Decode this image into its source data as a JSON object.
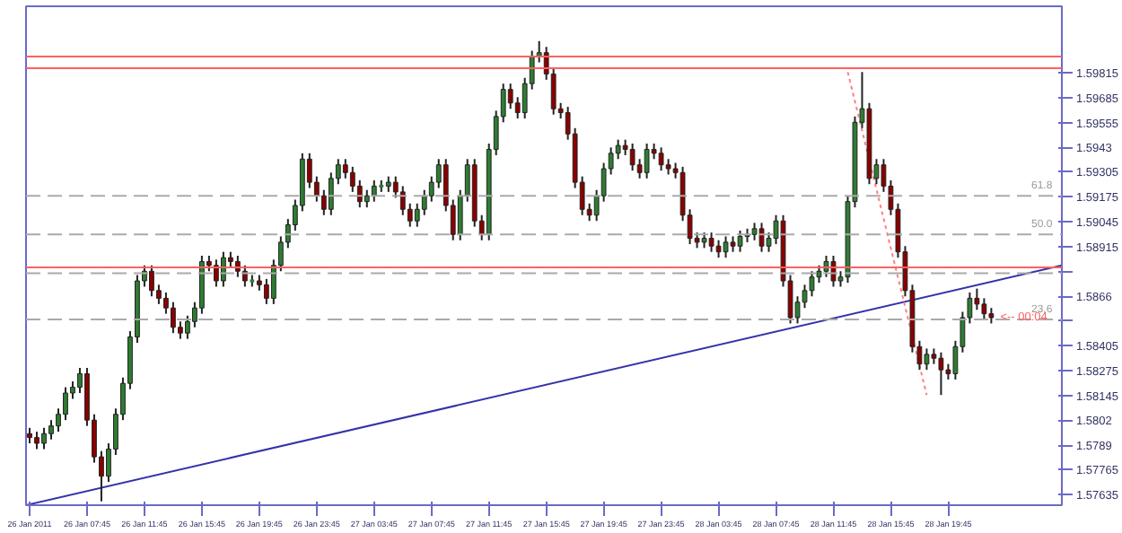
{
  "chart_data": {
    "type": "candlestick",
    "colors": [
      "#8b0000",
      "#8b0000",
      "#2e7d32",
      "#2e7d32",
      "#2e7d32",
      "#2e7d32",
      "#2e7d32",
      "#2e7d32",
      "#8b0000",
      "#8b0000",
      "#8b0000",
      "#2e7d32",
      "#2e7d32",
      "#2e7d32",
      "#2e7d32",
      "#2e7d32",
      "#2e7d32",
      "#8b0000",
      "#8b0000",
      "#8b0000",
      "#8b0000",
      "#8b0000",
      "#2e7d32",
      "#2e7d32",
      "#2e7d32",
      "#8b0000",
      "#8b0000",
      "#2e7d32",
      "#8b0000",
      "#8b0000",
      "#8b0000",
      "#2e7d32",
      "#8b0000",
      "#8b0000",
      "#2e7d32",
      "#2e7d32",
      "#2e7d32",
      "#2e7d32",
      "#2e7d32",
      "#8b0000",
      "#8b0000",
      "#8b0000",
      "#2e7d32",
      "#2e7d32",
      "#8b0000",
      "#8b0000",
      "#8b0000",
      "#2e7d32",
      "#2e7d32",
      "#2e7d32",
      "#2e7d32",
      "#8b0000",
      "#8b0000",
      "#8b0000",
      "#2e7d32",
      "#2e7d32",
      "#2e7d32",
      "#2e7d32",
      "#8b0000",
      "#8b0000",
      "#2e7d32",
      "#2e7d32",
      "#8b0000",
      "#8b0000",
      "#2e7d32",
      "#2e7d32",
      "#2e7d32",
      "#8b0000",
      "#8b0000",
      "#2e7d32",
      "#2e7d32",
      "#2e7d32",
      "#8b0000",
      "#8b0000",
      "#8b0000",
      "#8b0000",
      "#8b0000",
      "#8b0000",
      "#8b0000",
      "#2e7d32",
      "#2e7d32",
      "#2e7d32",
      "#2e7d32",
      "#8b0000",
      "#8b0000",
      "#8b0000",
      "#2e7d32",
      "#8b0000",
      "#8b0000",
      "#8b0000",
      "#8b0000",
      "#8b0000",
      "#8b0000",
      "#8b0000",
      "#2e7d32",
      "#8b0000",
      "#8b0000",
      "#2e7d32",
      "#8b0000",
      "#2e7d32",
      "#2e7d32",
      "#2e7d32",
      "#8b0000",
      "#2e7d32",
      "#2e7d32",
      "#8b0000",
      "#8b0000",
      "#2e7d32",
      "#2e7d32",
      "#2e7d32",
      "#2e7d32",
      "#2e7d32",
      "#8b0000",
      "#2e7d32",
      "#2e7d32",
      "#2e7d32",
      "#2e7d32",
      "#8b0000",
      "#2e7d32",
      "#8b0000",
      "#8b0000",
      "#8b0000",
      "#8b0000",
      "#8b0000",
      "#8b0000",
      "#2e7d32",
      "#8b0000",
      "#8b0000",
      "#8b0000",
      "#2e7d32",
      "#2e7d32",
      "#2e7d32",
      "#8b0000",
      "#8b0000",
      "#8b0000"
    ],
    "x": [
      "2011-01-26T03:45",
      "2011-01-26T04:15",
      "2011-01-26T04:45",
      "2011-01-26T05:15",
      "2011-01-26T05:45",
      "2011-01-26T06:15",
      "2011-01-26T06:45",
      "2011-01-26T07:15",
      "2011-01-26T07:45",
      "2011-01-26T08:15",
      "2011-01-26T08:45",
      "2011-01-26T09:15",
      "2011-01-26T09:45",
      "2011-01-26T10:15",
      "2011-01-26T10:45",
      "2011-01-26T11:15",
      "2011-01-26T11:45",
      "2011-01-26T12:15",
      "2011-01-26T12:45",
      "2011-01-26T13:15",
      "2011-01-26T13:45",
      "2011-01-26T14:15",
      "2011-01-26T14:45",
      "2011-01-26T15:15",
      "2011-01-26T15:45",
      "2011-01-26T16:15",
      "2011-01-26T16:45",
      "2011-01-26T17:15",
      "2011-01-26T17:45",
      "2011-01-26T18:15",
      "2011-01-26T18:45",
      "2011-01-26T19:15",
      "2011-01-26T19:45",
      "2011-01-26T20:15",
      "2011-01-26T20:45",
      "2011-01-26T21:15",
      "2011-01-26T21:45",
      "2011-01-26T22:15",
      "2011-01-26T22:45",
      "2011-01-26T23:15",
      "2011-01-26T23:45",
      "2011-01-27T00:15",
      "2011-01-27T00:45",
      "2011-01-27T01:15",
      "2011-01-27T01:45",
      "2011-01-27T02:15",
      "2011-01-27T02:45",
      "2011-01-27T03:15",
      "2011-01-27T03:45",
      "2011-01-27T04:15",
      "2011-01-27T04:45",
      "2011-01-27T05:15",
      "2011-01-27T05:45",
      "2011-01-27T06:15",
      "2011-01-27T06:45",
      "2011-01-27T07:15",
      "2011-01-27T07:45",
      "2011-01-27T08:15",
      "2011-01-27T08:45",
      "2011-01-27T09:15",
      "2011-01-27T09:45",
      "2011-01-27T10:15",
      "2011-01-27T10:45",
      "2011-01-27T11:15",
      "2011-01-27T11:45",
      "2011-01-27T12:15",
      "2011-01-27T12:45",
      "2011-01-27T13:15",
      "2011-01-27T13:45",
      "2011-01-27T14:15",
      "2011-01-27T14:45",
      "2011-01-27T15:15",
      "2011-01-27T15:45",
      "2011-01-27T16:15",
      "2011-01-27T16:45",
      "2011-01-27T17:15",
      "2011-01-27T17:45",
      "2011-01-27T18:15",
      "2011-01-27T18:45",
      "2011-01-27T19:15",
      "2011-01-27T19:45",
      "2011-01-27T20:15",
      "2011-01-27T20:45",
      "2011-01-27T21:15",
      "2011-01-27T21:45",
      "2011-01-27T22:15",
      "2011-01-27T22:45",
      "2011-01-27T23:15",
      "2011-01-27T23:45",
      "2011-01-28T00:15",
      "2011-01-28T00:45",
      "2011-01-28T01:15",
      "2011-01-28T01:45",
      "2011-01-28T02:15",
      "2011-01-28T02:45",
      "2011-01-28T03:15",
      "2011-01-28T03:45",
      "2011-01-28T04:15",
      "2011-01-28T04:45",
      "2011-01-28T05:15",
      "2011-01-28T05:45",
      "2011-01-28T06:15",
      "2011-01-28T06:45",
      "2011-01-28T07:15",
      "2011-01-28T07:45",
      "2011-01-28T08:15",
      "2011-01-28T08:45",
      "2011-01-28T09:15",
      "2011-01-28T09:45",
      "2011-01-28T10:15",
      "2011-01-28T10:45",
      "2011-01-28T11:15",
      "2011-01-28T11:45",
      "2011-01-28T12:15",
      "2011-01-28T12:45",
      "2011-01-28T13:15",
      "2011-01-28T13:45",
      "2011-01-28T14:15",
      "2011-01-28T14:45",
      "2011-01-28T15:15",
      "2011-01-28T15:45",
      "2011-01-28T16:15",
      "2011-01-28T16:45",
      "2011-01-28T17:15",
      "2011-01-28T17:45",
      "2011-01-28T18:15",
      "2011-01-28T18:45",
      "2011-01-28T19:15",
      "2011-01-28T19:45",
      "2011-01-28T20:15",
      "2011-01-28T20:45",
      "2011-01-28T21:15",
      "2011-01-28T21:45",
      "2011-01-28T22:15",
      "2011-01-28T22:45"
    ],
    "ohlc": [
      [
        1.5795,
        1.5798,
        1.579,
        1.5793
      ],
      [
        1.5793,
        1.5796,
        1.5787,
        1.579
      ],
      [
        1.579,
        1.5798,
        1.5787,
        1.5795
      ],
      [
        1.5795,
        1.5802,
        1.5792,
        1.5799
      ],
      [
        1.5799,
        1.5808,
        1.5796,
        1.5805
      ],
      [
        1.5805,
        1.5819,
        1.5802,
        1.5816
      ],
      [
        1.5816,
        1.5822,
        1.5813,
        1.5819
      ],
      [
        1.5819,
        1.5829,
        1.5816,
        1.5826
      ],
      [
        1.5826,
        1.5829,
        1.5799,
        1.5802
      ],
      [
        1.5802,
        1.5805,
        1.578,
        1.5783
      ],
      [
        1.5783,
        1.5786,
        1.576,
        1.5773
      ],
      [
        1.5773,
        1.579,
        1.577,
        1.5787
      ],
      [
        1.5787,
        1.5808,
        1.5784,
        1.5805
      ],
      [
        1.5805,
        1.5824,
        1.5802,
        1.5821
      ],
      [
        1.5821,
        1.5848,
        1.5818,
        1.5845
      ],
      [
        1.5845,
        1.5877,
        1.5842,
        1.5874
      ],
      [
        1.5874,
        1.5882,
        1.5871,
        1.5879
      ],
      [
        1.5879,
        1.5882,
        1.5866,
        1.5869
      ],
      [
        1.5869,
        1.5872,
        1.5862,
        1.5865
      ],
      [
        1.5865,
        1.5868,
        1.5857,
        1.586
      ],
      [
        1.586,
        1.5863,
        1.5847,
        1.585
      ],
      [
        1.585,
        1.5853,
        1.5844,
        1.5847
      ],
      [
        1.5847,
        1.5856,
        1.5844,
        1.5853
      ],
      [
        1.5853,
        1.5863,
        1.585,
        1.586
      ],
      [
        1.586,
        1.5887,
        1.5857,
        1.5884
      ],
      [
        1.5884,
        1.5887,
        1.5879,
        1.5882
      ],
      [
        1.5882,
        1.5885,
        1.5871,
        1.5874
      ],
      [
        1.5874,
        1.5889,
        1.5871,
        1.5886
      ],
      [
        1.5886,
        1.5889,
        1.5881,
        1.5884
      ],
      [
        1.5884,
        1.5887,
        1.5876,
        1.5879
      ],
      [
        1.5879,
        1.5882,
        1.5871,
        1.5874
      ],
      [
        1.5874,
        1.5877,
        1.5871,
        1.5874
      ],
      [
        1.5874,
        1.5877,
        1.5869,
        1.5872
      ],
      [
        1.5872,
        1.5875,
        1.5862,
        1.5865
      ],
      [
        1.5865,
        1.5885,
        1.5862,
        1.5882
      ],
      [
        1.5882,
        1.5897,
        1.5879,
        1.5894
      ],
      [
        1.5894,
        1.5906,
        1.5891,
        1.5903
      ],
      [
        1.5903,
        1.5916,
        1.59,
        1.5913
      ],
      [
        1.5913,
        1.594,
        1.591,
        1.5937
      ],
      [
        1.5937,
        1.594,
        1.5922,
        1.5925
      ],
      [
        1.5925,
        1.5928,
        1.5915,
        1.5918
      ],
      [
        1.5918,
        1.5921,
        1.5908,
        1.5911
      ],
      [
        1.5911,
        1.593,
        1.5908,
        1.5927
      ],
      [
        1.5927,
        1.5937,
        1.5924,
        1.5934
      ],
      [
        1.5934,
        1.5937,
        1.5927,
        1.593
      ],
      [
        1.593,
        1.5933,
        1.592,
        1.5923
      ],
      [
        1.5923,
        1.5926,
        1.5912,
        1.5915
      ],
      [
        1.5915,
        1.5921,
        1.5912,
        1.5918
      ],
      [
        1.5918,
        1.5926,
        1.5915,
        1.5923
      ],
      [
        1.5923,
        1.5926,
        1.592,
        1.5923
      ],
      [
        1.5923,
        1.5928,
        1.592,
        1.5925
      ],
      [
        1.5925,
        1.5928,
        1.5917,
        1.592
      ],
      [
        1.592,
        1.5923,
        1.5908,
        1.5911
      ],
      [
        1.5911,
        1.5914,
        1.5902,
        1.5905
      ],
      [
        1.5905,
        1.5914,
        1.5902,
        1.5911
      ],
      [
        1.5911,
        1.5921,
        1.5908,
        1.5918
      ],
      [
        1.5918,
        1.5928,
        1.5915,
        1.5925
      ],
      [
        1.5925,
        1.5937,
        1.5922,
        1.5934
      ],
      [
        1.5934,
        1.5937,
        1.591,
        1.5913
      ],
      [
        1.5913,
        1.5916,
        1.5895,
        1.5898
      ],
      [
        1.5898,
        1.5921,
        1.5895,
        1.5918
      ],
      [
        1.5918,
        1.5937,
        1.5915,
        1.5934
      ],
      [
        1.5934,
        1.5937,
        1.5902,
        1.5905
      ],
      [
        1.5905,
        1.5908,
        1.5895,
        1.5898
      ],
      [
        1.5898,
        1.5945,
        1.5895,
        1.5942
      ],
      [
        1.5942,
        1.5962,
        1.5939,
        1.5959
      ],
      [
        1.5959,
        1.5976,
        1.5956,
        1.5973
      ],
      [
        1.5973,
        1.5976,
        1.5963,
        1.5966
      ],
      [
        1.5966,
        1.5969,
        1.5958,
        1.5961
      ],
      [
        1.5961,
        1.5979,
        1.5958,
        1.5976
      ],
      [
        1.5976,
        1.5993,
        1.5973,
        1.599
      ],
      [
        1.599,
        1.5998,
        1.5987,
        1.5992
      ],
      [
        1.5992,
        1.5995,
        1.5978,
        1.5981
      ],
      [
        1.5981,
        1.5984,
        1.596,
        1.5963
      ],
      [
        1.5963,
        1.5966,
        1.5958,
        1.5961
      ],
      [
        1.5961,
        1.5964,
        1.5947,
        1.595
      ],
      [
        1.595,
        1.5953,
        1.5922,
        1.5925
      ],
      [
        1.5925,
        1.5928,
        1.5908,
        1.5911
      ],
      [
        1.5911,
        1.5914,
        1.5905,
        1.5908
      ],
      [
        1.5908,
        1.5921,
        1.5905,
        1.5918
      ],
      [
        1.5918,
        1.5935,
        1.5915,
        1.5932
      ],
      [
        1.5932,
        1.5943,
        1.5929,
        1.594
      ],
      [
        1.594,
        1.5947,
        1.5937,
        1.5944
      ],
      [
        1.5944,
        1.5947,
        1.5939,
        1.5942
      ],
      [
        1.5942,
        1.5945,
        1.5931,
        1.5934
      ],
      [
        1.5934,
        1.5937,
        1.5927,
        1.593
      ],
      [
        1.593,
        1.5945,
        1.5927,
        1.5942
      ],
      [
        1.5942,
        1.5945,
        1.5937,
        1.594
      ],
      [
        1.594,
        1.5943,
        1.5931,
        1.5934
      ],
      [
        1.5934,
        1.5937,
        1.5929,
        1.5932
      ],
      [
        1.5932,
        1.5935,
        1.5927,
        1.593
      ],
      [
        1.593,
        1.5933,
        1.5905,
        1.5908
      ],
      [
        1.5908,
        1.5911,
        1.5893,
        1.5896
      ],
      [
        1.5896,
        1.5899,
        1.5891,
        1.5894
      ],
      [
        1.5894,
        1.5899,
        1.5891,
        1.5896
      ],
      [
        1.5896,
        1.5899,
        1.5889,
        1.5892
      ],
      [
        1.5892,
        1.5895,
        1.5886,
        1.5889
      ],
      [
        1.5889,
        1.5897,
        1.5886,
        1.5894
      ],
      [
        1.5894,
        1.5897,
        1.5889,
        1.5892
      ],
      [
        1.5892,
        1.59,
        1.5889,
        1.5897
      ],
      [
        1.5897,
        1.5901,
        1.5894,
        1.5898
      ],
      [
        1.5898,
        1.5904,
        1.5895,
        1.5901
      ],
      [
        1.5901,
        1.5904,
        1.5889,
        1.5892
      ],
      [
        1.5892,
        1.5899,
        1.5889,
        1.5896
      ],
      [
        1.5896,
        1.5908,
        1.5893,
        1.5905
      ],
      [
        1.5905,
        1.5908,
        1.5871,
        1.5874
      ],
      [
        1.5874,
        1.5877,
        1.5852,
        1.5855
      ],
      [
        1.5855,
        1.5866,
        1.5852,
        1.5863
      ],
      [
        1.5863,
        1.5872,
        1.586,
        1.5869
      ],
      [
        1.5869,
        1.5879,
        1.5866,
        1.5876
      ],
      [
        1.5876,
        1.5882,
        1.5873,
        1.5879
      ],
      [
        1.5879,
        1.5887,
        1.5876,
        1.5884
      ],
      [
        1.5884,
        1.5887,
        1.5871,
        1.5874
      ],
      [
        1.5874,
        1.5879,
        1.5871,
        1.5876
      ],
      [
        1.5876,
        1.5918,
        1.5873,
        1.5915
      ],
      [
        1.5915,
        1.5959,
        1.5912,
        1.5956
      ],
      [
        1.5956,
        1.5982,
        1.5953,
        1.5963
      ],
      [
        1.5963,
        1.5966,
        1.5924,
        1.5927
      ],
      [
        1.5927,
        1.5937,
        1.5924,
        1.5934
      ],
      [
        1.5934,
        1.5937,
        1.592,
        1.5923
      ],
      [
        1.5923,
        1.5926,
        1.5908,
        1.5911
      ],
      [
        1.5911,
        1.5914,
        1.5886,
        1.5889
      ],
      [
        1.5889,
        1.5892,
        1.5866,
        1.5869
      ],
      [
        1.5869,
        1.5872,
        1.5837,
        1.584
      ],
      [
        1.584,
        1.5843,
        1.5828,
        1.5831
      ],
      [
        1.5831,
        1.5839,
        1.5828,
        1.5836
      ],
      [
        1.5836,
        1.5839,
        1.5831,
        1.5834
      ],
      [
        1.5834,
        1.5837,
        1.5815,
        1.5828
      ],
      [
        1.5828,
        1.5831,
        1.5823,
        1.5826
      ],
      [
        1.5826,
        1.5843,
        1.5823,
        1.584
      ],
      [
        1.584,
        1.5858,
        1.5837,
        1.5855
      ],
      [
        1.5855,
        1.5868,
        1.5852,
        1.5865
      ],
      [
        1.5865,
        1.587,
        1.5859,
        1.5862
      ],
      [
        1.5862,
        1.5865,
        1.5854,
        1.5857
      ],
      [
        1.5857,
        1.586,
        1.5852,
        1.5855
      ]
    ],
    "series": [
      {
        "type": "line",
        "color": "#3333aa",
        "line_style": "solid",
        "x": [
          "2011-01-26T03:30",
          "2011-01-29T03:40"
        ],
        "values": [
          1.5758,
          1.5882
        ]
      },
      {
        "type": "line",
        "color": "#ff8080",
        "line_style": "dotted",
        "x": [
          "2011-01-28T12:45",
          "2011-01-28T18:15"
        ],
        "values": [
          1.5982,
          1.5815
        ]
      }
    ],
    "ref_lines": [
      {
        "axis": "y",
        "value": 1.599,
        "color": "#ff6060",
        "line_style": "solid"
      },
      {
        "axis": "y",
        "value": 1.5984,
        "color": "#ff6060",
        "line_style": "solid"
      },
      {
        "axis": "y",
        "value": 1.5881,
        "color": "#ff6060",
        "line_style": "solid"
      },
      {
        "axis": "y",
        "value": 1.5918,
        "color": "#aaaaaa",
        "line_style": "dashed"
      },
      {
        "axis": "y",
        "value": 1.5898,
        "color": "#aaaaaa",
        "line_style": "dashed"
      },
      {
        "axis": "y",
        "value": 1.5878,
        "color": "#aaaaaa",
        "line_style": "dashed"
      },
      {
        "axis": "y",
        "value": 1.5854,
        "color": "#aaaaaa",
        "line_style": "dashed"
      }
    ],
    "annotations": [
      {
        "text": "61.8",
        "x": "2011-01-29T03:00",
        "y": 1.5918
      },
      {
        "text": "50.0",
        "x": "2011-01-29T03:00",
        "y": 1.5898
      },
      {
        "text": "23.6",
        "x": "2011-01-29T03:00",
        "y": 1.5854
      },
      {
        "text": "<-- 00:04",
        "x": "2011-01-28T22:45",
        "y": 1.5855
      }
    ],
    "xlim": [
      "2011-01-26T03:30",
      "2011-01-29T03:40"
    ],
    "xticks": [
      {
        "value": "2011-01-26T03:45",
        "label": "26 Jan 2011"
      },
      {
        "value": "2011-01-26T07:45",
        "label": "26 Jan 07:45"
      },
      {
        "value": "2011-01-26T11:45",
        "label": "26 Jan 11:45"
      },
      {
        "value": "2011-01-26T15:45",
        "label": "26 Jan 15:45"
      },
      {
        "value": "2011-01-26T19:45",
        "label": "26 Jan 19:45"
      },
      {
        "value": "2011-01-26T23:45",
        "label": "26 Jan 23:45"
      },
      {
        "value": "2011-01-27T03:45",
        "label": "27 Jan 03:45"
      },
      {
        "value": "2011-01-27T07:45",
        "label": "27 Jan 07:45"
      },
      {
        "value": "2011-01-27T11:45",
        "label": "27 Jan 11:45"
      },
      {
        "value": "2011-01-27T15:45",
        "label": "27 Jan 15:45"
      },
      {
        "value": "2011-01-27T19:45",
        "label": "27 Jan 19:45"
      },
      {
        "value": "2011-01-27T23:45",
        "label": "27 Jan 23:45"
      },
      {
        "value": "2011-01-28T03:45",
        "label": "28 Jan 03:45"
      },
      {
        "value": "2011-01-28T07:45",
        "label": "28 Jan 07:45"
      },
      {
        "value": "2011-01-28T11:45",
        "label": "28 Jan 11:45"
      },
      {
        "value": "2011-01-28T15:45",
        "label": "28 Jan 15:45"
      },
      {
        "value": "2011-01-28T19:45",
        "label": "28 Jan 19:45"
      }
    ],
    "ylim": [
      1.5758,
      1.6016
    ],
    "yticks": [
      1.57635,
      1.57765,
      1.5789,
      1.5802,
      1.58145,
      1.58275,
      1.58405,
      {
        "value": 1.58535,
        "label": null
      },
      1.5866,
      {
        "value": 1.5879,
        "label": null
      },
      1.58915,
      1.59045,
      1.59175,
      1.59305,
      1.5943,
      1.59555,
      1.59685,
      1.59815
    ],
    "grid": false
  }
}
